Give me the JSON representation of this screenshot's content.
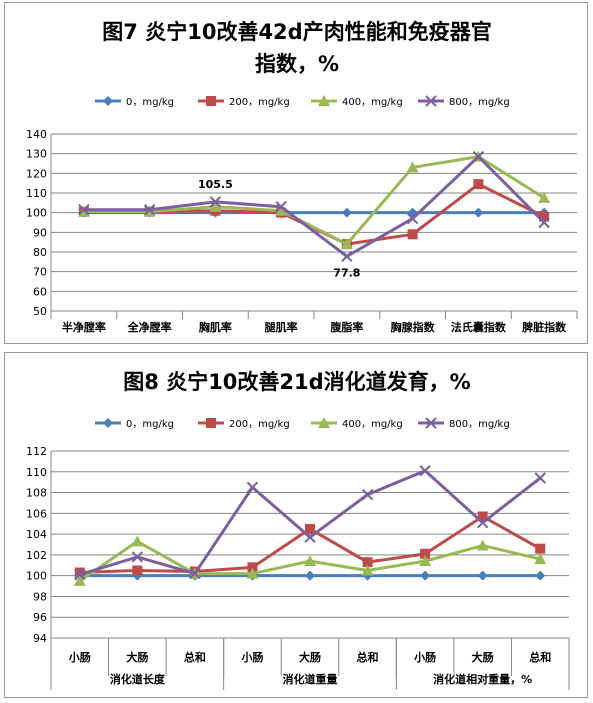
{
  "legend_colors": [
    "#4a7ebb",
    "#be4b48",
    "#98b954",
    "#7d5fa0"
  ],
  "chart_data": [
    {
      "type": "line",
      "title_line1": "图7 炎宁10改善42d产肉性能和免疫器官",
      "title_line2": "指数，%",
      "categories": [
        "半净膛率",
        "全净膛率",
        "胸肌率",
        "腿肌率",
        "腹脂率",
        "胸腺指数",
        "法氏囊指数",
        "脾脏指数"
      ],
      "ylim": [
        50,
        140
      ],
      "ytick_step": 10,
      "grid": true,
      "legend_position": "top",
      "series": [
        {
          "name": "0，mg/kg",
          "values": [
            100,
            100,
            100,
            100,
            100,
            100,
            100,
            100
          ]
        },
        {
          "name": "200，mg/kg",
          "values": [
            100.5,
            100.5,
            101,
            100,
            84,
            89,
            114.5,
            98
          ]
        },
        {
          "name": "400，mg/kg",
          "values": [
            100.5,
            100.5,
            103,
            101,
            84,
            123,
            128.5,
            107.5
          ]
        },
        {
          "name": "800，mg/kg",
          "values": [
            101.5,
            101.5,
            105.5,
            103,
            77.8,
            97,
            128.5,
            95
          ]
        }
      ],
      "annotations": [
        {
          "text": "105.5",
          "category_index": 2,
          "series_index": 3,
          "placement": "above"
        },
        {
          "text": "77.8",
          "category_index": 4,
          "series_index": 3,
          "placement": "below"
        }
      ]
    },
    {
      "type": "line",
      "title_line1": "图8 炎宁10改善21d消化道发育，%",
      "categories": [
        "小肠",
        "大肠",
        "总和",
        "小肠",
        "大肠",
        "总和",
        "小肠",
        "大肠",
        "总和"
      ],
      "groups": [
        "消化道长度",
        "消化道重量",
        "消化道相对重量，%"
      ],
      "ylim": [
        94,
        112
      ],
      "ytick_step": 2,
      "grid": true,
      "legend_position": "top",
      "series": [
        {
          "name": "0，mg/kg",
          "values": [
            100,
            100,
            100,
            100,
            100,
            100,
            100,
            100,
            100
          ]
        },
        {
          "name": "200，mg/kg",
          "values": [
            100.3,
            100.5,
            100.4,
            100.8,
            104.5,
            101.3,
            102.1,
            105.7,
            102.6
          ]
        },
        {
          "name": "400，mg/kg",
          "values": [
            99.5,
            103.3,
            100.2,
            100.2,
            101.4,
            100.5,
            101.4,
            102.9,
            101.6
          ]
        },
        {
          "name": "800，mg/kg",
          "values": [
            100.1,
            101.8,
            100.2,
            108.5,
            103.7,
            107.8,
            110.1,
            105.1,
            109.4
          ]
        }
      ]
    }
  ]
}
